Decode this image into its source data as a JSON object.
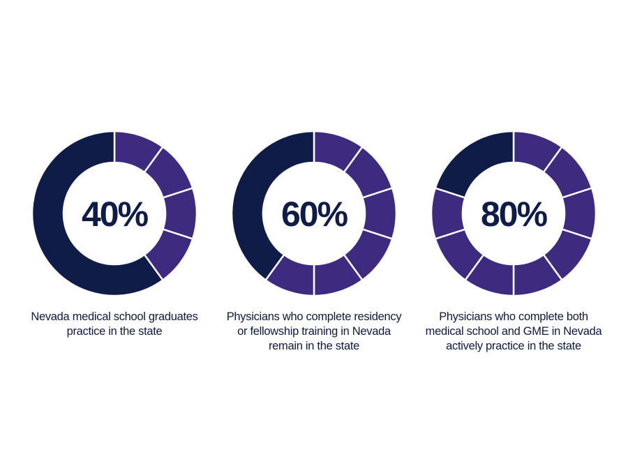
{
  "colors": {
    "dark": "#0f1c47",
    "accent": "#3e2a7e",
    "text": "#0e1a3e",
    "divider": "#ffffff"
  },
  "chart_data": [
    {
      "type": "pie",
      "label": "40%",
      "value": 40,
      "segments": 10,
      "caption": [
        "Nevada medical school graduates",
        "practice in the state"
      ]
    },
    {
      "type": "pie",
      "label": "60%",
      "value": 60,
      "segments": 10,
      "caption": [
        "Physicians who complete residency",
        "or fellowship training in Nevada",
        "remain in the state"
      ]
    },
    {
      "type": "pie",
      "label": "80%",
      "value": 80,
      "segments": 10,
      "caption": [
        "Physicians who complete both",
        "medical school and GME in Nevada",
        "actively practice in the state"
      ]
    }
  ]
}
